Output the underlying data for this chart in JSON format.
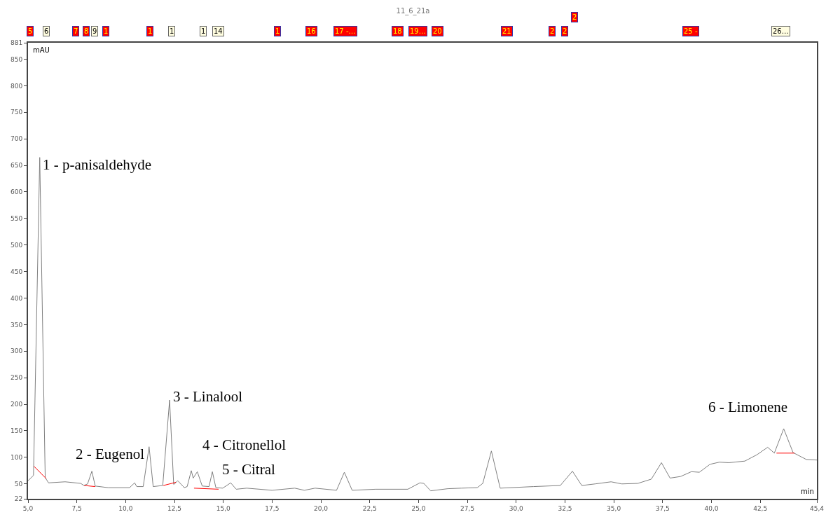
{
  "chart_data": {
    "type": "line",
    "title": "11_6_21a",
    "xlabel": "min",
    "ylabel": "mAU",
    "xlim": [
      5,
      45.4
    ],
    "ylim": [
      22,
      881
    ],
    "xticks": [
      {
        "value": 5,
        "label": "5,0"
      },
      {
        "value": 7.5,
        "label": "7,5"
      },
      {
        "value": 10,
        "label": "10,0"
      },
      {
        "value": 12.5,
        "label": "12,5"
      },
      {
        "value": 15,
        "label": "15,0"
      },
      {
        "value": 17.5,
        "label": "17,5"
      },
      {
        "value": 20,
        "label": "20,0"
      },
      {
        "value": 22.5,
        "label": "22,5"
      },
      {
        "value": 25,
        "label": "25,0"
      },
      {
        "value": 27.5,
        "label": "27,5"
      },
      {
        "value": 30,
        "label": "30,0"
      },
      {
        "value": 32.5,
        "label": "32,5"
      },
      {
        "value": 35,
        "label": "35,0"
      },
      {
        "value": 37.5,
        "label": "37,5"
      },
      {
        "value": 40,
        "label": "40,0"
      },
      {
        "value": 42.5,
        "label": "42,5"
      },
      {
        "value": 45.4,
        "label": "45,4"
      }
    ],
    "yticks": [
      22,
      50,
      100,
      150,
      200,
      250,
      300,
      350,
      400,
      450,
      500,
      550,
      600,
      650,
      700,
      750,
      800,
      850,
      881
    ],
    "grid": false,
    "marker": "none",
    "line_style": "solid",
    "series": [
      {
        "color": "#808080",
        "x": [
          5.0,
          5.28,
          5.6,
          5.88,
          6.05,
          6.9,
          7.7,
          7.86,
          8.05,
          8.27,
          8.44,
          9.1,
          10.2,
          10.46,
          10.57,
          10.9,
          11.2,
          11.41,
          11.9,
          12.25,
          12.46,
          12.67,
          13.0,
          13.15,
          13.36,
          13.46,
          13.67,
          13.92,
          14.27,
          14.44,
          14.62,
          14.97,
          15.38,
          15.66,
          16.2,
          17.5,
          18.66,
          19.15,
          19.7,
          20.8,
          21.2,
          21.6,
          22.8,
          24.45,
          25.07,
          25.27,
          25.62,
          26.5,
          27.19,
          28.01,
          28.29,
          28.73,
          29.18,
          30.89,
          32.26,
          32.88,
          33.36,
          34.04,
          34.86,
          35.41,
          36.23,
          36.92,
          37.44,
          37.88,
          38.42,
          38.97,
          39.38,
          39.93,
          40.41,
          40.89,
          41.71,
          42.33,
          42.88,
          43.22,
          43.7,
          44.18,
          44.86,
          45.4
        ],
        "values": [
          56,
          66,
          665,
          62,
          52,
          54,
          51,
          47,
          50,
          74,
          46,
          43,
          43,
          52,
          45,
          45,
          120,
          45,
          47,
          208,
          49,
          56,
          43,
          45,
          75,
          61,
          73,
          46,
          45,
          73,
          43,
          42,
          52,
          40,
          42,
          38,
          42,
          38,
          42,
          38,
          72,
          38,
          40,
          40,
          52,
          51,
          37,
          41,
          42,
          43,
          51,
          112,
          42,
          45,
          47,
          74,
          47,
          50,
          54,
          50,
          51,
          59,
          90,
          61,
          64,
          73,
          72,
          87,
          91,
          90,
          93,
          105,
          119,
          108,
          154,
          109,
          96,
          95
        ]
      },
      {
        "color": "#ff0000",
        "x": [
          5.31,
          5.93
        ],
        "values": [
          83,
          60
        ]
      },
      {
        "color": "#ff0000",
        "x": [
          7.88,
          8.44
        ],
        "values": [
          47,
          45
        ]
      },
      {
        "color": "#ff0000",
        "x": [
          11.93,
          12.57
        ],
        "values": [
          47,
          53
        ]
      },
      {
        "color": "#ff0000",
        "x": [
          13.5,
          14.76
        ],
        "values": [
          42,
          40
        ]
      },
      {
        "color": "#ff0000",
        "x": [
          43.33,
          44.25
        ],
        "values": [
          108,
          108
        ]
      }
    ],
    "annotations": [
      {
        "text": "1 - p-anisaldehyde",
        "x": 5.6,
        "y": 665
      },
      {
        "text": "2 - Eugenol",
        "x": 8.27,
        "y": 74
      },
      {
        "text": "3 - Linalool",
        "x": 12.25,
        "y": 208
      },
      {
        "text": "4 - Citronellol",
        "x": 13.5,
        "y": 73
      },
      {
        "text": "5 - Citral",
        "x": 14.44,
        "y": 73
      },
      {
        "text": "6 - Limonene",
        "x": 43.7,
        "y": 154
      },
      "5",
      "6",
      "7",
      "8",
      "9",
      "1",
      "1",
      "1",
      "1",
      "14",
      "1",
      "16",
      "17 -…",
      "18",
      "19…",
      "20",
      "21",
      "2",
      "2",
      "2",
      "25 -",
      "26…"
    ]
  }
}
